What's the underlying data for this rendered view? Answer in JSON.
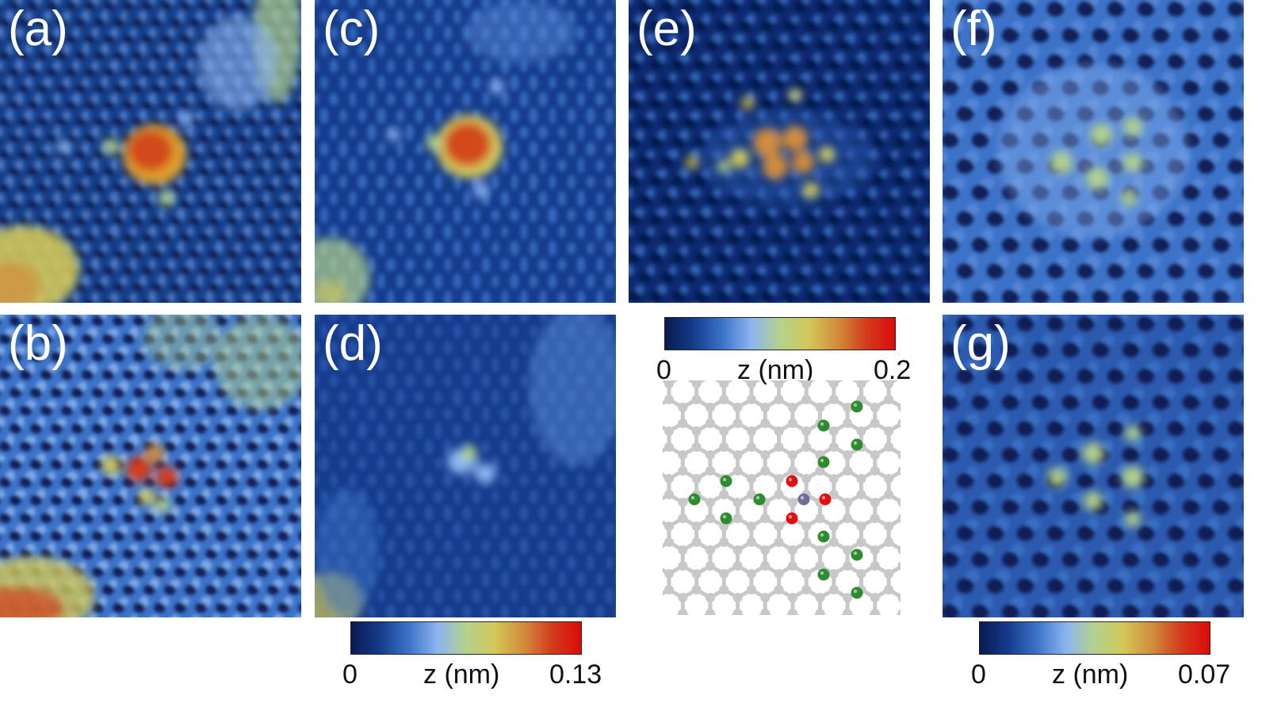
{
  "panels": [
    {
      "id": "a",
      "label": "(a)"
    },
    {
      "id": "b",
      "label": "(b)"
    },
    {
      "id": "c",
      "label": "(c)"
    },
    {
      "id": "d",
      "label": "(d)"
    },
    {
      "id": "e",
      "label": "(e)"
    },
    {
      "id": "f",
      "label": "(f)"
    },
    {
      "id": "g",
      "label": "(g)"
    }
  ],
  "colorbars": [
    {
      "id": "cb-e",
      "min": "0",
      "axis": "z (nm)",
      "max": "0.2"
    },
    {
      "id": "cb-cd",
      "min": "0",
      "axis": "z (nm)",
      "max": "0.13"
    },
    {
      "id": "cb-fg",
      "min": "0",
      "axis": "z (nm)",
      "max": "0.07"
    }
  ],
  "colors": {
    "colormap": [
      "#0a1a50",
      "#163c8c",
      "#3c73c8",
      "#8cb4f0",
      "#b4d28c",
      "#d2c85a",
      "#d28c3c",
      "#d23c1e",
      "#dc0a0a"
    ],
    "lattice_atom": "#c8c8c8",
    "dopant_green": "#2e8b2e",
    "dopant_red": "#e01010",
    "center_atom": "#6e6e96"
  }
}
